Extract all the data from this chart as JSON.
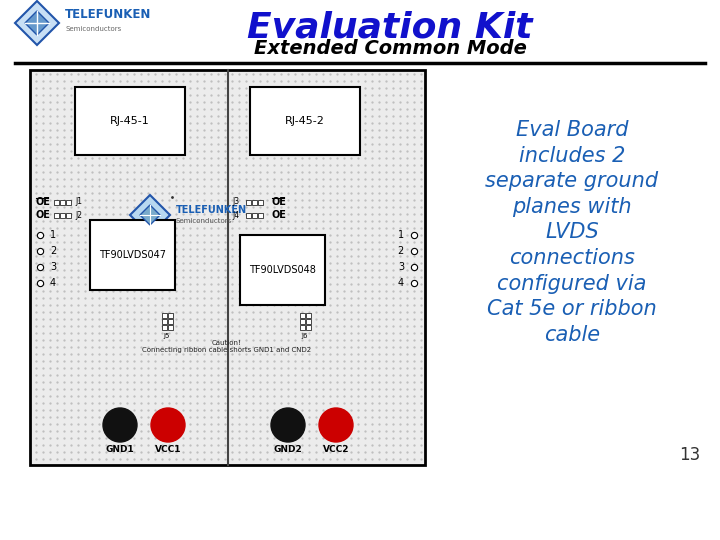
{
  "bg_color": "#ffffff",
  "title_text": "Evaluation Kit",
  "title_color": "#1111cc",
  "subtitle_text": "Extended Common Mode",
  "subtitle_color": "#000000",
  "body_text": "Eval Board\nincludes 2\nseparate ground\nplanes with\nLVDS\nconnections\nconfigured via\nCat 5e or ribbon\ncable",
  "body_text_color": "#1a5fb4",
  "page_number": "13",
  "board_bg": "#eeeeee",
  "board_border": "#000000",
  "rj45_1_label": "RJ-45-1",
  "rj45_2_label": "RJ-45-2",
  "chip1_label": "TF90LVDS047",
  "chip2_label": "TF90LVDS048",
  "gnd1_label": "GND1",
  "vcc1_label": "VCC1",
  "gnd2_label": "GND2",
  "vcc2_label": "VCC2",
  "caution_text": "Caution!\nConnecting ribbon cable shorts GND1 and CND2",
  "oe_label": "OE",
  "header_line_color": "#000000",
  "dot_color": "#bbbbbb",
  "divider_color": "#444444"
}
